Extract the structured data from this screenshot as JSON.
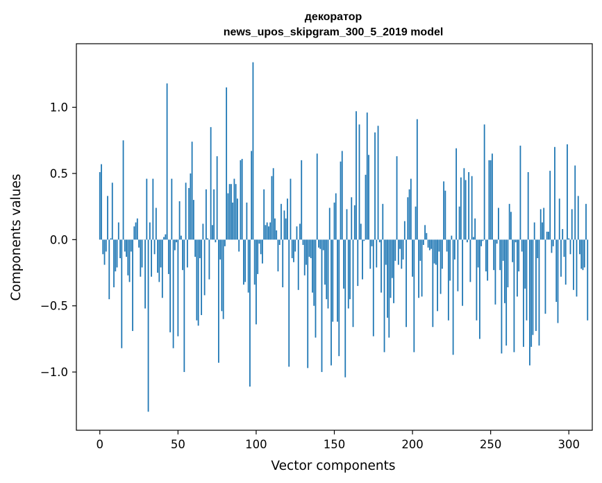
{
  "chart_data": {
    "type": "bar",
    "title": "декоратор",
    "subtitle": "news_upos_skipgram_300_5_2019 model",
    "xlabel": "Vector components",
    "ylabel": "Components values",
    "xlim": [
      -15,
      315
    ],
    "ylim": [
      -1.44,
      1.48
    ],
    "grid": false,
    "legend": "none",
    "bar_color": "#1f77b4",
    "x_ticks": [
      {
        "value": 0,
        "label": "0"
      },
      {
        "value": 50,
        "label": "50"
      },
      {
        "value": 100,
        "label": "100"
      },
      {
        "value": 150,
        "label": "150"
      },
      {
        "value": 200,
        "label": "200"
      },
      {
        "value": 250,
        "label": "250"
      },
      {
        "value": 300,
        "label": "300"
      }
    ],
    "y_ticks": [
      {
        "value": -1.0,
        "label": "−1.0"
      },
      {
        "value": -0.5,
        "label": "−0.5"
      },
      {
        "value": 0.0,
        "label": "0.0"
      },
      {
        "value": 0.5,
        "label": "0.5"
      },
      {
        "value": 1.0,
        "label": "1.0"
      }
    ],
    "values": [
      0.51,
      0.57,
      -0.11,
      -0.19,
      -0.09,
      0.33,
      -0.45,
      0.01,
      0.43,
      -0.36,
      -0.24,
      -0.21,
      0.13,
      -0.14,
      -0.82,
      0.75,
      -0.09,
      -0.13,
      -0.27,
      -0.32,
      -0.09,
      -0.69,
      0.1,
      0.13,
      0.16,
      -0.06,
      -0.28,
      -0.21,
      0.0,
      -0.52,
      0.46,
      -1.3,
      0.13,
      -0.28,
      0.46,
      -0.11,
      0.24,
      -0.25,
      -0.32,
      -0.21,
      -0.44,
      0.02,
      0.04,
      1.18,
      -0.26,
      -0.7,
      0.46,
      -0.82,
      -0.08,
      -0.02,
      -0.73,
      0.29,
      0.03,
      -0.23,
      -1.0,
      0.43,
      -0.21,
      0.39,
      0.5,
      0.74,
      0.3,
      -0.13,
      -0.61,
      -0.65,
      -0.14,
      -0.57,
      0.12,
      -0.42,
      0.38,
      0.01,
      -0.3,
      0.85,
      0.11,
      0.38,
      -0.02,
      0.63,
      -0.93,
      -0.15,
      -0.54,
      -0.6,
      -0.05,
      1.15,
      0.35,
      0.42,
      0.42,
      0.28,
      0.46,
      0.42,
      0.31,
      -0.09,
      0.6,
      0.61,
      -0.34,
      -0.32,
      0.28,
      -0.4,
      -1.11,
      0.67,
      1.34,
      -0.34,
      -0.64,
      -0.26,
      -0.03,
      -0.11,
      -0.18,
      0.38,
      0.11,
      0.13,
      0.1,
      0.13,
      0.48,
      0.54,
      0.16,
      0.07,
      -0.24,
      -0.04,
      0.27,
      -0.36,
      0.22,
      0.16,
      0.31,
      -0.96,
      0.46,
      -0.14,
      -0.17,
      -0.09,
      0.1,
      -0.38,
      0.12,
      0.6,
      -0.04,
      -0.27,
      -0.19,
      -0.97,
      -0.13,
      -0.14,
      -0.4,
      -0.5,
      -0.74,
      0.65,
      -0.06,
      -0.07,
      -1.0,
      -0.08,
      -0.34,
      -0.45,
      -0.52,
      0.24,
      -0.95,
      -0.62,
      0.28,
      0.35,
      -0.62,
      -0.88,
      0.59,
      0.67,
      -0.37,
      -1.04,
      0.23,
      -0.52,
      -0.45,
      0.32,
      -0.66,
      0.26,
      0.97,
      -0.35,
      0.87,
      0.12,
      -0.3,
      -0.01,
      0.49,
      0.96,
      0.64,
      -0.22,
      -0.05,
      -0.73,
      0.81,
      -0.21,
      0.86,
      -0.02,
      -0.4,
      0.27,
      -0.85,
      -0.19,
      -0.59,
      -0.74,
      -0.44,
      -0.29,
      -0.48,
      -0.16,
      0.63,
      -0.19,
      -0.07,
      -0.22,
      -0.15,
      0.14,
      -0.66,
      0.32,
      0.38,
      0.46,
      -0.28,
      -0.85,
      0.25,
      0.91,
      -0.44,
      -0.16,
      -0.43,
      -0.04,
      0.11,
      0.05,
      -0.06,
      -0.08,
      -0.07,
      -0.66,
      -0.18,
      -0.19,
      -0.54,
      -0.09,
      -0.41,
      -0.22,
      0.44,
      0.37,
      -0.09,
      -0.61,
      -0.31,
      0.03,
      -0.87,
      -0.15,
      0.69,
      -0.39,
      0.25,
      0.47,
      -0.5,
      0.54,
      0.45,
      -0.02,
      0.51,
      -0.32,
      0.48,
      0.02,
      0.16,
      -0.61,
      -0.21,
      -0.75,
      -0.05,
      -0.01,
      0.87,
      -0.24,
      -0.31,
      0.6,
      0.6,
      0.65,
      -0.23,
      -0.49,
      -0.03,
      0.24,
      -0.23,
      -0.86,
      -0.16,
      -0.48,
      -0.8,
      -0.36,
      0.27,
      0.21,
      -0.17,
      -0.85,
      -0.02,
      -0.43,
      -0.24,
      0.71,
      -0.09,
      -0.81,
      -0.37,
      -0.61,
      0.51,
      -0.95,
      -0.81,
      -0.72,
      0.13,
      -0.69,
      -0.14,
      -0.8,
      0.23,
      0.13,
      0.24,
      -0.56,
      0.06,
      0.06,
      0.52,
      -0.1,
      -0.05,
      0.7,
      -0.47,
      -0.63,
      0.31,
      -0.28,
      0.08,
      -0.13,
      -0.34,
      0.72,
      0.01,
      -0.11,
      0.23,
      -0.38,
      0.56,
      -0.43,
      0.33,
      -0.11,
      -0.22,
      -0.23,
      -0.21,
      0.27,
      -0.61
    ]
  }
}
